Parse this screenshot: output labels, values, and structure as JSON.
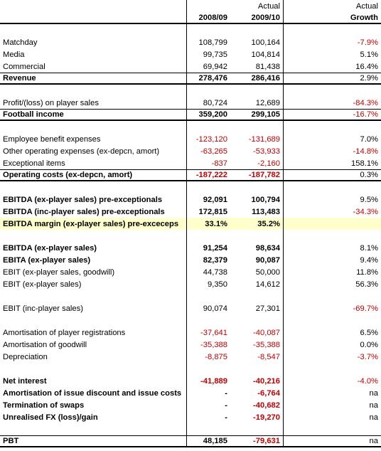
{
  "header": {
    "line1": {
      "a": "",
      "b": "Actual",
      "g": "Actual"
    },
    "line2": {
      "a": "2008/09",
      "b": "2009/10",
      "g": "Growth"
    }
  },
  "rows": [
    {
      "kind": "header1"
    },
    {
      "kind": "header2"
    },
    {
      "kind": "blank"
    },
    {
      "label": "Matchday",
      "a": "108,799",
      "b": "100,164",
      "g": "-7.9%"
    },
    {
      "label": "Media",
      "a": "99,735",
      "b": "104,814",
      "g": "5.1%"
    },
    {
      "label": "Commercial",
      "a": "69,942",
      "b": "81,438",
      "g": "16.4%"
    },
    {
      "label": "Revenue",
      "a": "278,476",
      "b": "286,416",
      "g": "2.9%",
      "bold": true,
      "border": "top-bottom"
    },
    {
      "kind": "blank"
    },
    {
      "label": "Profit/(loss) on player sales",
      "a": "80,724",
      "b": "12,689",
      "g": "-84.3%"
    },
    {
      "label": "Football income",
      "a": "359,200",
      "b": "299,105",
      "g": "-16.7%",
      "bold": true,
      "border": "top-bottom"
    },
    {
      "kind": "blank"
    },
    {
      "label": "Employee benefit expenses",
      "a": "-123,120",
      "b": "-131,689",
      "g": "7.0%"
    },
    {
      "label": "Other operating expenses (ex-depcn, amort)",
      "a": "-63,265",
      "b": "-53,933",
      "g": "-14.8%"
    },
    {
      "label": "Exceptional items",
      "a": "-837",
      "b": "-2,160",
      "g": "158.1%"
    },
    {
      "label": "Operating costs (ex-depcn, amort)",
      "a": "-187,222",
      "b": "-187,782",
      "g": "0.3%",
      "bold": true,
      "border": "top-bottom"
    },
    {
      "kind": "blank"
    },
    {
      "label": "EBITDA (ex-player sales) pre-exceptionals",
      "a": "92,091",
      "b": "100,794",
      "g": "9.5%",
      "bold": true
    },
    {
      "label": "EBITDA (inc-player sales) pre-exceptionals",
      "a": "172,815",
      "b": "113,483",
      "g": "-34.3%",
      "bold": true
    },
    {
      "label": "EBITDA margin (ex-player sales) pre-exceceps",
      "a": "33.1%",
      "b": "35.2%",
      "g": "",
      "bold": true,
      "highlight": true
    },
    {
      "kind": "blank"
    },
    {
      "label": "EBITDA (ex-player sales)",
      "a": "91,254",
      "b": "98,634",
      "g": "8.1%",
      "bold": true
    },
    {
      "label": "EBITA (ex-player sales)",
      "a": "82,379",
      "b": "90,087",
      "g": "9.4%",
      "bold": true
    },
    {
      "label": "EBIT (ex-player sales, goodwill)",
      "a": "44,738",
      "b": "50,000",
      "g": "11.8%"
    },
    {
      "label": "EBIT (ex-player sales)",
      "a": "9,350",
      "b": "14,612",
      "g": "56.3%"
    },
    {
      "kind": "blank"
    },
    {
      "label": "EBIT (inc-player sales)",
      "a": "90,074",
      "b": "27,301",
      "g": "-69.7%"
    },
    {
      "kind": "blank"
    },
    {
      "label": "Amortisation of player registrations",
      "a": "-37,641",
      "b": "-40,087",
      "g": "6.5%"
    },
    {
      "label": "Amortisation of goodwill",
      "a": "-35,388",
      "b": "-35,388",
      "g": "0.0%"
    },
    {
      "label": "Depreciation",
      "a": "-8,875",
      "b": "-8,547",
      "g": "-3.7%"
    },
    {
      "kind": "blank"
    },
    {
      "label": "Net interest",
      "a": "-41,889",
      "b": "-40,216",
      "g": "-4.0%",
      "bold": true
    },
    {
      "label": "Amortisation of issue discount and issue costs",
      "a": "-",
      "b": "-6,764",
      "g": "na",
      "bold": true
    },
    {
      "label": "Termination of swaps",
      "a": "-",
      "b": "-40,682",
      "g": "na",
      "bold": true
    },
    {
      "label": "Unrealised FX (loss)/gain",
      "a": "-",
      "b": "-19,270",
      "g": "na",
      "bold": true
    },
    {
      "kind": "blank"
    },
    {
      "label": "PBT",
      "a": "48,185",
      "b": "-79,631",
      "g": "na",
      "bold": true,
      "border": "top-bottom"
    }
  ],
  "colors": {
    "negative": "#c00000",
    "highlight": "#ffffcc"
  }
}
